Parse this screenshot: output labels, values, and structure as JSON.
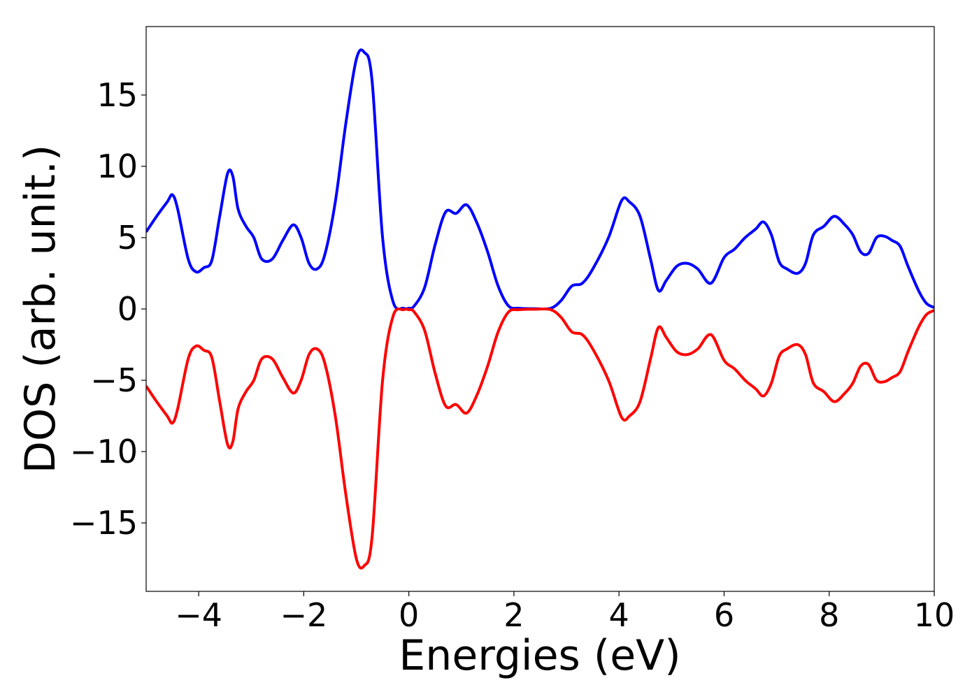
{
  "chart_data": {
    "type": "line",
    "xlabel": "Energies (eV)",
    "ylabel": "DOS (arb. unit.)",
    "xlim": [
      -5,
      10
    ],
    "ylim": [
      -19.8,
      19.8
    ],
    "grid": false,
    "xticks": [
      -4,
      -2,
      0,
      2,
      4,
      6,
      8,
      10
    ],
    "xtick_labels": [
      "−4",
      "−2",
      "0",
      "2",
      "4",
      "6",
      "8",
      "10"
    ],
    "yticks": [
      15,
      10,
      5,
      0,
      -5,
      -10,
      -15
    ],
    "ytick_labels": [
      "15",
      "10",
      "5",
      "0",
      "−5",
      "−10",
      "−15"
    ],
    "series": [
      {
        "color": "#0000ff",
        "x": [
          -5.0,
          -4.8,
          -4.6,
          -4.5,
          -4.4,
          -4.2,
          -4.05,
          -3.9,
          -3.75,
          -3.6,
          -3.45,
          -3.35,
          -3.25,
          -3.1,
          -2.95,
          -2.8,
          -2.6,
          -2.4,
          -2.2,
          -2.05,
          -1.9,
          -1.75,
          -1.6,
          -1.4,
          -1.2,
          -1.0,
          -0.85,
          -0.7,
          -0.5,
          -0.3,
          -0.1,
          0.0,
          0.1,
          0.3,
          0.5,
          0.7,
          0.9,
          1.1,
          1.3,
          1.5,
          1.7,
          1.9,
          2.1,
          2.4,
          2.7,
          2.9,
          3.1,
          3.3,
          3.5,
          3.8,
          4.05,
          4.2,
          4.4,
          4.6,
          4.75,
          4.9,
          5.1,
          5.3,
          5.5,
          5.75,
          6.0,
          6.2,
          6.4,
          6.6,
          6.75,
          6.9,
          7.05,
          7.2,
          7.4,
          7.55,
          7.7,
          7.9,
          8.1,
          8.3,
          8.45,
          8.6,
          8.75,
          8.9,
          9.05,
          9.2,
          9.35,
          9.5,
          9.7,
          9.85,
          10.0
        ],
        "y": [
          5.4,
          6.5,
          7.5,
          8.0,
          7.0,
          3.5,
          2.6,
          2.9,
          3.4,
          6.5,
          9.5,
          9.3,
          7.0,
          5.8,
          5.0,
          3.5,
          3.5,
          4.8,
          5.9,
          5.0,
          3.2,
          2.8,
          3.8,
          7.5,
          13.0,
          17.5,
          18.0,
          16.0,
          5.0,
          0.5,
          0.05,
          0.05,
          0.2,
          1.5,
          4.5,
          6.8,
          6.7,
          7.3,
          6.0,
          4.0,
          1.6,
          0.2,
          0.05,
          0.02,
          0.05,
          0.6,
          1.6,
          1.8,
          2.8,
          5.0,
          7.6,
          7.5,
          6.5,
          3.5,
          1.3,
          2.0,
          3.0,
          3.2,
          2.8,
          1.8,
          3.6,
          4.2,
          5.0,
          5.6,
          6.1,
          5.2,
          3.3,
          2.8,
          2.5,
          3.2,
          5.2,
          5.8,
          6.5,
          5.9,
          5.2,
          4.0,
          3.9,
          5.0,
          5.1,
          4.8,
          4.4,
          3.0,
          1.3,
          0.4,
          0.1
        ]
      },
      {
        "color": "#ff0000",
        "x": [
          -5.0,
          -4.8,
          -4.6,
          -4.5,
          -4.4,
          -4.2,
          -4.05,
          -3.9,
          -3.75,
          -3.6,
          -3.45,
          -3.35,
          -3.25,
          -3.1,
          -2.95,
          -2.8,
          -2.6,
          -2.4,
          -2.2,
          -2.05,
          -1.9,
          -1.75,
          -1.6,
          -1.4,
          -1.2,
          -1.0,
          -0.85,
          -0.7,
          -0.5,
          -0.3,
          -0.1,
          0.0,
          0.1,
          0.3,
          0.5,
          0.7,
          0.9,
          1.1,
          1.3,
          1.5,
          1.7,
          1.9,
          2.1,
          2.4,
          2.7,
          2.9,
          3.1,
          3.3,
          3.5,
          3.8,
          4.05,
          4.2,
          4.4,
          4.6,
          4.75,
          4.9,
          5.1,
          5.3,
          5.5,
          5.75,
          6.0,
          6.2,
          6.4,
          6.6,
          6.75,
          6.9,
          7.05,
          7.2,
          7.4,
          7.55,
          7.7,
          7.9,
          8.1,
          8.3,
          8.45,
          8.6,
          8.75,
          8.9,
          9.05,
          9.2,
          9.35,
          9.5,
          9.7,
          9.85,
          10.0
        ],
        "y": [
          -5.4,
          -6.5,
          -7.5,
          -8.0,
          -7.0,
          -3.5,
          -2.6,
          -2.9,
          -3.4,
          -6.5,
          -9.5,
          -9.3,
          -7.0,
          -5.8,
          -5.0,
          -3.5,
          -3.5,
          -4.8,
          -5.9,
          -5.0,
          -3.2,
          -2.8,
          -3.8,
          -7.5,
          -13.0,
          -17.5,
          -18.0,
          -16.0,
          -5.0,
          -0.5,
          -0.05,
          -0.05,
          -0.2,
          -1.5,
          -4.5,
          -6.8,
          -6.7,
          -7.3,
          -6.0,
          -4.0,
          -1.6,
          -0.2,
          -0.05,
          -0.02,
          -0.05,
          -0.6,
          -1.6,
          -1.8,
          -2.8,
          -5.0,
          -7.6,
          -7.5,
          -6.5,
          -3.5,
          -1.3,
          -2.0,
          -3.0,
          -3.2,
          -2.8,
          -1.8,
          -3.6,
          -4.2,
          -5.0,
          -5.6,
          -6.1,
          -5.2,
          -3.3,
          -2.8,
          -2.5,
          -3.2,
          -5.2,
          -5.8,
          -6.5,
          -5.9,
          -5.2,
          -4.0,
          -3.9,
          -5.0,
          -5.1,
          -4.8,
          -4.4,
          -3.0,
          -1.3,
          -0.4,
          -0.1
        ]
      }
    ]
  }
}
